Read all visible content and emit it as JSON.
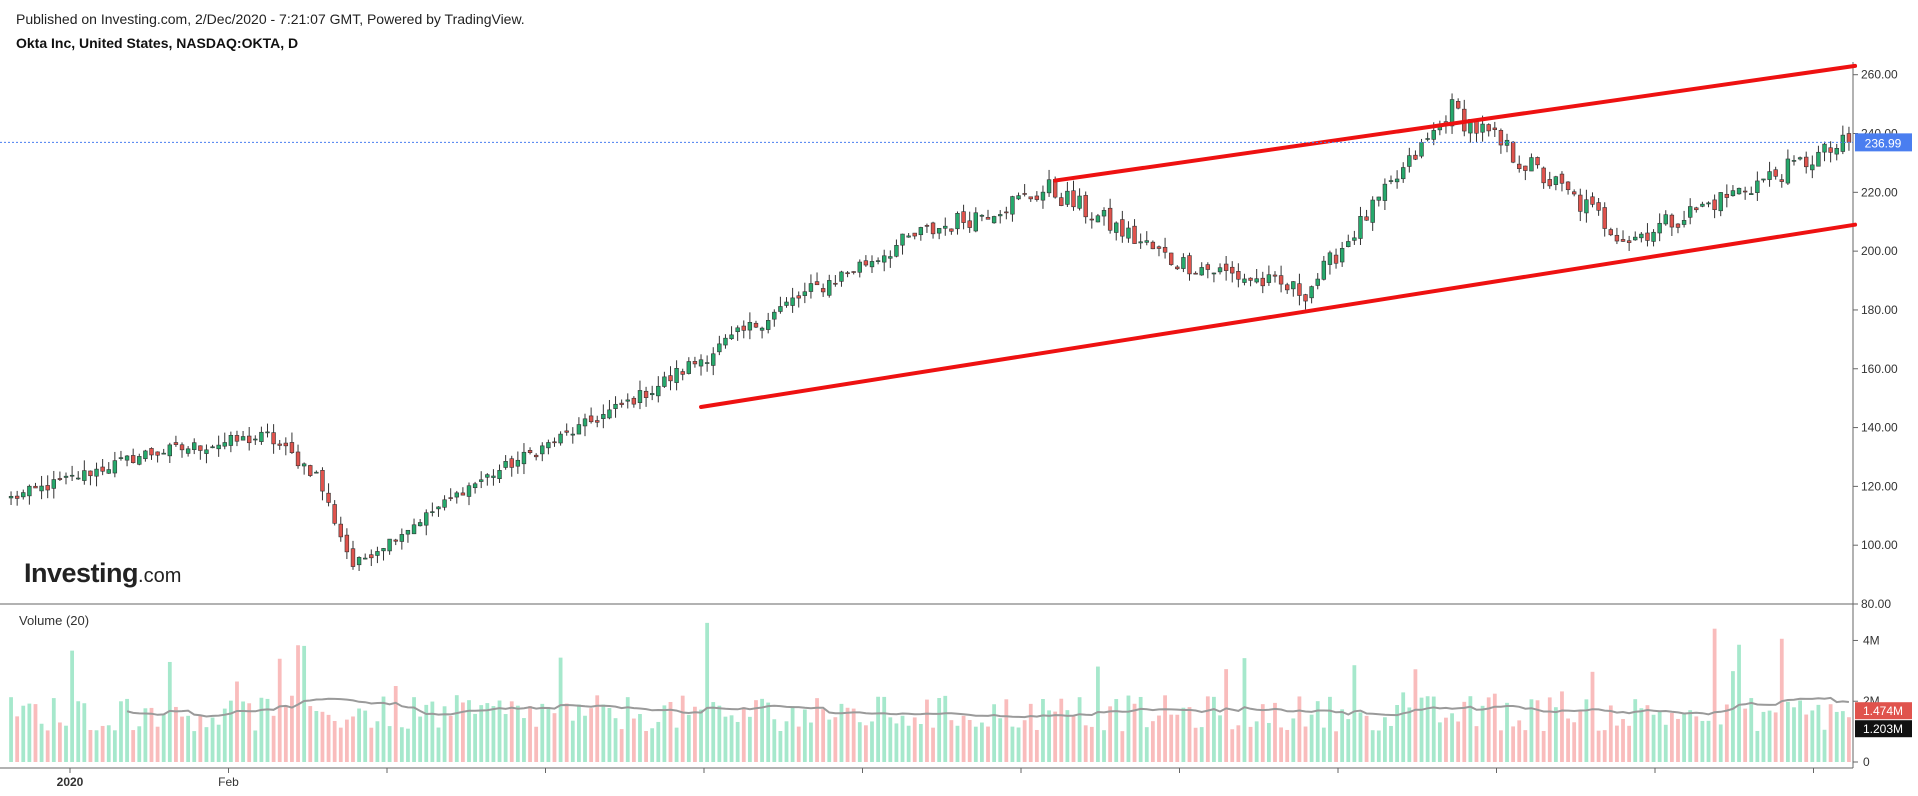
{
  "header": {
    "published": "Published on Investing.com, 2/Dec/2020 - 7:21:07 GMT, Powered by TradingView.",
    "symbol_line": "Okta Inc, United States, NASDAQ:OKTA, D"
  },
  "watermark": {
    "brand": "Investing",
    "suffix": ".com"
  },
  "volume_panel": {
    "label": "Volume (20)"
  },
  "colors": {
    "up": "#26a96c",
    "down": "#e0534d",
    "vol_up": "#a6e8cc",
    "vol_down": "#f9bcbc",
    "trendline": "#ee1111",
    "price_line": "#4a7ef0",
    "ma": "#9a9a9a",
    "grid_axis": "#666666"
  },
  "chart_data": [
    {
      "type": "candlestick",
      "title": "Okta Inc, United States, NASDAQ:OKTA, D",
      "ylim": [
        80,
        265
      ],
      "y_ticks": [
        "260.00",
        "240.00",
        "220.00",
        "200.00",
        "180.00",
        "160.00",
        "140.00",
        "120.00",
        "100.00",
        "80.00"
      ],
      "x_ticks": [
        "2020",
        "Feb",
        "",
        "",
        "",
        "",
        "",
        "",
        "",
        "",
        "",
        "",
        ""
      ],
      "last_price": 236.99,
      "last_price_label": "236.99",
      "period_range": "2019-12 to 2020-12",
      "key_points": [
        {
          "date": "2019-12",
          "close": 116
        },
        {
          "date": "2020-01",
          "close": 131
        },
        {
          "date": "2020-02",
          "close": 137
        },
        {
          "date": "2020-02-end",
          "close": 124
        },
        {
          "date": "2020-03-low",
          "close": 93
        },
        {
          "date": "2020-04",
          "close": 120
        },
        {
          "date": "2020-05",
          "close": 153
        },
        {
          "date": "2020-06",
          "close": 183
        },
        {
          "date": "2020-07",
          "close": 205
        },
        {
          "date": "2020-08",
          "close": 221
        },
        {
          "date": "2020-09",
          "close": 197
        },
        {
          "date": "2020-10",
          "close": 186
        },
        {
          "date": "2020-11",
          "close": 248
        },
        {
          "date": "2020-11-mid",
          "close": 204
        },
        {
          "date": "2020-12",
          "close": 237
        }
      ],
      "trendlines": [
        {
          "name": "channel-upper",
          "from": {
            "bar": 171,
            "price": 224
          },
          "to": {
            "bar": 302,
            "price": 263
          }
        },
        {
          "name": "channel-lower",
          "from": {
            "bar": 113,
            "price": 147
          },
          "to": {
            "bar": 302,
            "price": 209
          }
        }
      ]
    },
    {
      "type": "bar",
      "title": "Volume (20)",
      "ylim": [
        0,
        5200000
      ],
      "y_ticks": [
        "4M",
        "2M",
        "0"
      ],
      "last_volume_label": "1.474M",
      "ma_label": "1.203M"
    }
  ]
}
